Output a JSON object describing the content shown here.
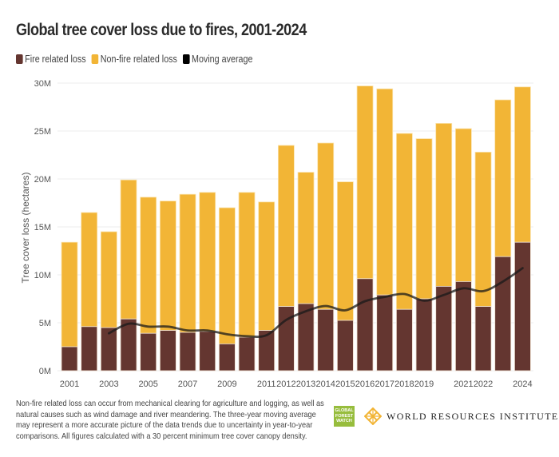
{
  "title": "Global tree cover loss due to fires, 2001-2024",
  "legend": [
    {
      "label": "Fire related loss",
      "color": "#643630"
    },
    {
      "label": "Non-fire related loss",
      "color": "#F2B536"
    },
    {
      "label": "Moving average",
      "color": "#000000"
    }
  ],
  "footnote": "Non-fire related loss can occur from mechanical clearing for agriculture and logging, as well as natural causes such as wind damage and river meandering. The three-year moving average may represent a more accurate picture of the data trends due to uncertainty in year-to-year comparisons. All figures calculated with a 30 percent minimum tree cover canopy density.",
  "logos": {
    "gfw": [
      "GLOBAL",
      "FOREST",
      "WATCH"
    ],
    "wri": "WORLD RESOURCES INSTITUTE"
  },
  "chart_data": {
    "type": "bar",
    "stacked": true,
    "title": "Global tree cover loss due to fires, 2001-2024",
    "xlabel": "",
    "ylabel": "Tree cover loss (hectares)",
    "ylim": [
      0,
      30000000
    ],
    "yticks": [
      0,
      5000000,
      10000000,
      15000000,
      20000000,
      25000000,
      30000000
    ],
    "ytick_labels": [
      "0M",
      "5M",
      "10M",
      "15M",
      "20M",
      "25M",
      "30M"
    ],
    "grid": true,
    "legend_position": "top-left",
    "categories": [
      "2001",
      "2002",
      "2003",
      "2004",
      "2005",
      "2006",
      "2007",
      "2008",
      "2009",
      "2010",
      "2011",
      "2012",
      "2013",
      "2014",
      "2015",
      "2016",
      "2017",
      "2018",
      "2019",
      "2020",
      "2021",
      "2022",
      "2023",
      "2024"
    ],
    "xtick_labels": [
      "2001",
      "",
      "2003",
      "",
      "2005",
      "",
      "2007",
      "",
      "2009",
      "",
      "2011",
      "2012",
      "2013",
      "2014",
      "2015",
      "2016",
      "2017",
      "2018",
      "2019",
      "",
      "2021",
      "2022",
      "",
      "2024"
    ],
    "series": [
      {
        "name": "Fire related loss",
        "color": "#643630",
        "values": [
          2.5,
          4.6,
          4.5,
          5.4,
          3.9,
          4.2,
          4.0,
          4.1,
          2.8,
          3.5,
          4.2,
          6.7,
          7.0,
          6.4,
          5.25,
          9.6,
          7.9,
          6.4,
          7.5,
          8.8,
          9.3,
          6.7,
          11.9,
          13.4
        ],
        "unit": "M ha"
      },
      {
        "name": "Non-fire related loss",
        "color": "#F2B536",
        "values": [
          10.9,
          11.9,
          10.0,
          14.5,
          14.2,
          13.5,
          14.4,
          14.5,
          14.2,
          15.1,
          13.4,
          16.8,
          13.7,
          17.35,
          14.45,
          20.1,
          21.5,
          18.35,
          16.7,
          17.0,
          15.95,
          16.1,
          16.35,
          16.2
        ],
        "unit": "M ha"
      }
    ],
    "totals": [
      13.4,
      16.5,
      14.5,
      19.9,
      18.1,
      17.7,
      18.4,
      18.6,
      17.0,
      18.6,
      17.6,
      23.5,
      20.7,
      23.75,
      19.7,
      29.7,
      29.4,
      24.75,
      24.2,
      25.8,
      25.25,
      22.8,
      28.25,
      29.6
    ],
    "moving_average": {
      "name": "Moving average",
      "color": "#000000",
      "start_category": "2003",
      "values": [
        null,
        null,
        3.9,
        4.9,
        4.6,
        4.6,
        4.2,
        4.2,
        3.8,
        3.6,
        3.7,
        5.3,
        6.2,
        6.75,
        6.3,
        7.25,
        7.7,
        8.0,
        7.3,
        7.9,
        8.6,
        8.3,
        9.3,
        10.7
      ],
      "unit": "M ha"
    }
  }
}
